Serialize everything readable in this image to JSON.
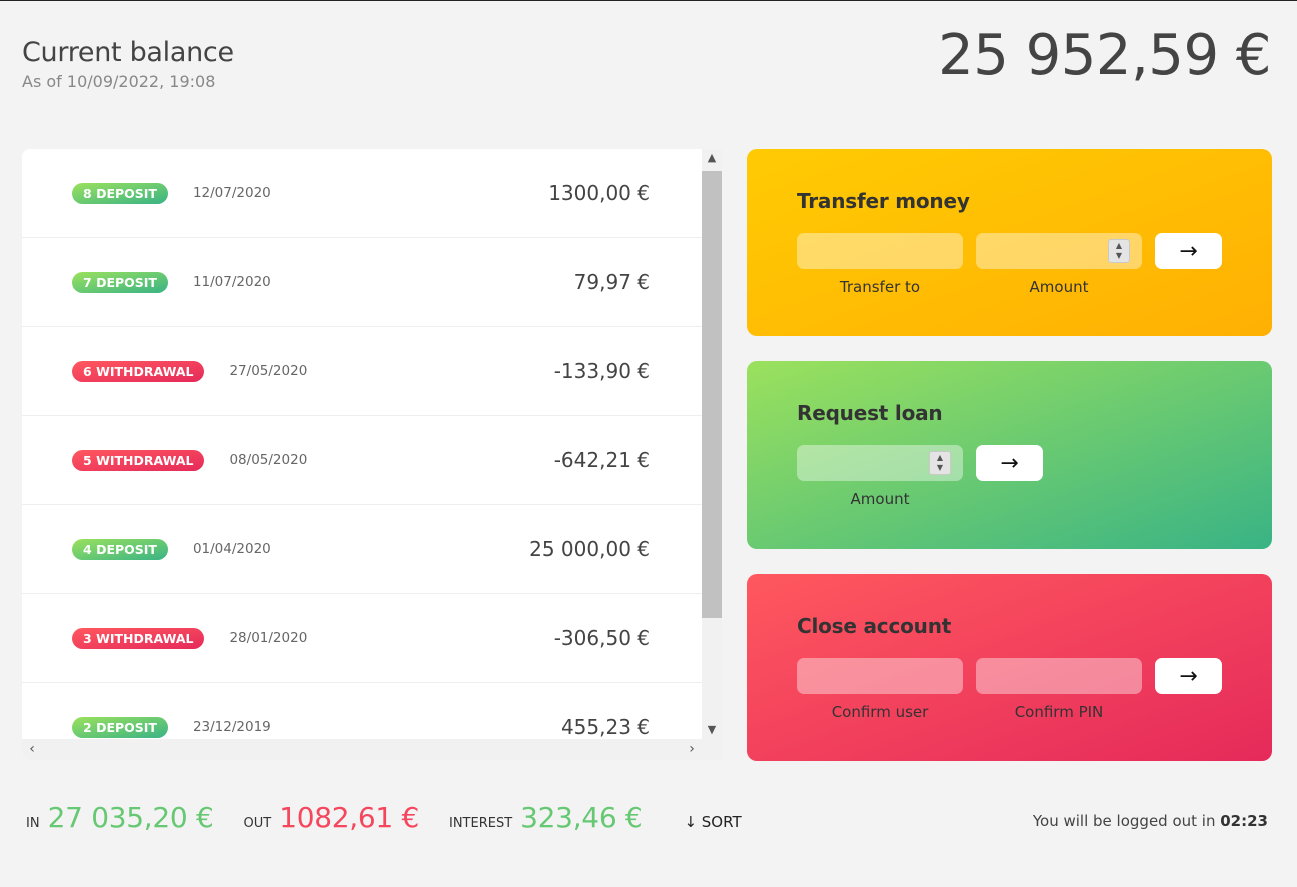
{
  "balance": {
    "title": "Current balance",
    "date_prefix": "As of",
    "date": "10/09/2022, 19:08",
    "value": "25 952,59 €"
  },
  "movements": [
    {
      "index": "8",
      "type": "deposit",
      "type_label": "deposit",
      "date": "12/07/2020",
      "value": "1300,00 €"
    },
    {
      "index": "7",
      "type": "deposit",
      "type_label": "deposit",
      "date": "11/07/2020",
      "value": "79,97 €"
    },
    {
      "index": "6",
      "type": "withdrawal",
      "type_label": "withdrawal",
      "date": "27/05/2020",
      "value": "-133,90 €"
    },
    {
      "index": "5",
      "type": "withdrawal",
      "type_label": "withdrawal",
      "date": "08/05/2020",
      "value": "-642,21 €"
    },
    {
      "index": "4",
      "type": "deposit",
      "type_label": "deposit",
      "date": "01/04/2020",
      "value": "25 000,00 €"
    },
    {
      "index": "3",
      "type": "withdrawal",
      "type_label": "withdrawal",
      "date": "28/01/2020",
      "value": "-306,50 €"
    },
    {
      "index": "2",
      "type": "deposit",
      "type_label": "deposit",
      "date": "23/12/2019",
      "value": "455,23 €"
    }
  ],
  "operations": {
    "transfer": {
      "title": "Transfer money",
      "to_label": "Transfer to",
      "amount_label": "Amount",
      "to_value": "",
      "amount_value": "",
      "button_icon": "→"
    },
    "loan": {
      "title": "Request loan",
      "amount_label": "Amount",
      "amount_value": "",
      "button_icon": "→"
    },
    "close": {
      "title": "Close account",
      "user_label": "Confirm user",
      "pin_label": "Confirm PIN",
      "user_value": "",
      "pin_value": "",
      "button_icon": "→"
    }
  },
  "summary": {
    "in_label": "In",
    "in_value": "27 035,20 €",
    "out_label": "Out",
    "out_value": "1082,61 €",
    "interest_label": "Interest",
    "interest_value": "323,46 €",
    "sort_label": "↓ SORT"
  },
  "logout": {
    "prefix": "You will be logged out in",
    "timer": "02:23"
  },
  "colors": {
    "background": "#f3f3f3",
    "deposit_start": "#9be15d",
    "deposit_end": "#39b385",
    "withdrawal_start": "#ff585f",
    "withdrawal_end": "#e52a5a",
    "transfer_start": "#ffcb03",
    "transfer_end": "#ffb003"
  }
}
